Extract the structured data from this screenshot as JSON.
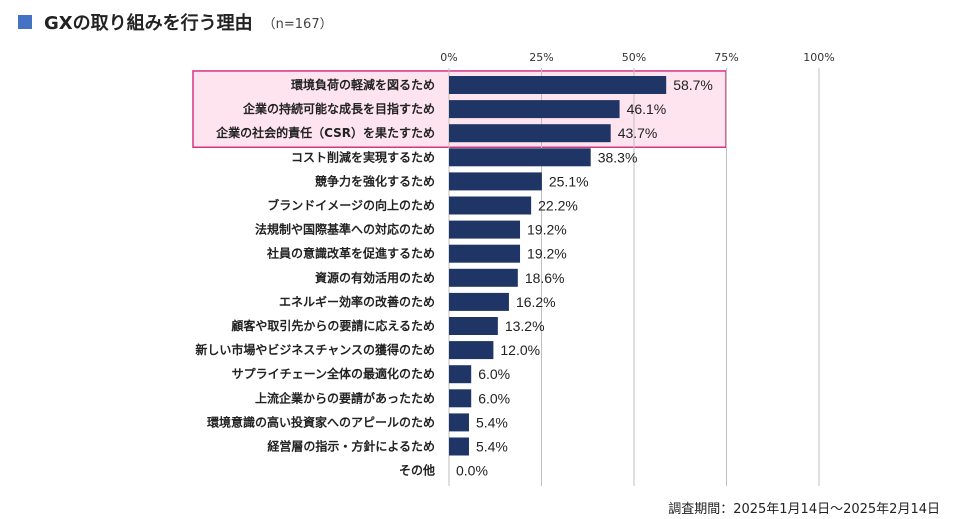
{
  "title": "GXの取り組みを行う理由",
  "sample_size": "（n=167）",
  "footnote": "調査期間：2025年1月14日〜2025年2月14日",
  "colors": {
    "bar": "#1f3566",
    "highlight_border": "#d63384",
    "highlight_fill": "#fde4ef",
    "title_square": "#4472c4",
    "grid": "#bfbfbf"
  },
  "chart_data": {
    "type": "bar",
    "orientation": "horizontal",
    "title": "GXの取り組みを行う理由",
    "xlim": [
      0,
      100
    ],
    "x_ticks": [
      "0%",
      "25%",
      "50%",
      "75%",
      "100%"
    ],
    "x_tick_values": [
      0,
      25,
      50,
      75,
      100
    ],
    "categories": [
      "環境負荷の軽減を図るため",
      "企業の持続可能な成長を目指すため",
      "企業の社会的責任（CSR）を果たすため",
      "コスト削減を実現するため",
      "競争力を強化するため",
      "ブランドイメージの向上のため",
      "法規制や国際基準への対応のため",
      "社員の意識改革を促進するため",
      "資源の有効活用のため",
      "エネルギー効率の改善のため",
      "顧客や取引先からの要請に応えるため",
      "新しい市場やビジネスチャンスの獲得のため",
      "サプライチェーン全体の最適化のため",
      "上流企業からの要請があったため",
      "環境意識の高い投資家へのアピールのため",
      "経営層の指示・方針によるため",
      "その他"
    ],
    "values": [
      58.7,
      46.1,
      43.7,
      38.3,
      25.1,
      22.2,
      19.2,
      19.2,
      18.6,
      16.2,
      13.2,
      12.0,
      6.0,
      6.0,
      5.4,
      5.4,
      0.0
    ],
    "value_labels": [
      "58.7%",
      "46.1%",
      "43.7%",
      "38.3%",
      "25.1%",
      "22.2%",
      "19.2%",
      "19.2%",
      "18.6%",
      "16.2%",
      "13.2%",
      "12.0%",
      "6.0%",
      "6.0%",
      "5.4%",
      "5.4%",
      "0.0%"
    ],
    "highlighted_count": 3
  }
}
